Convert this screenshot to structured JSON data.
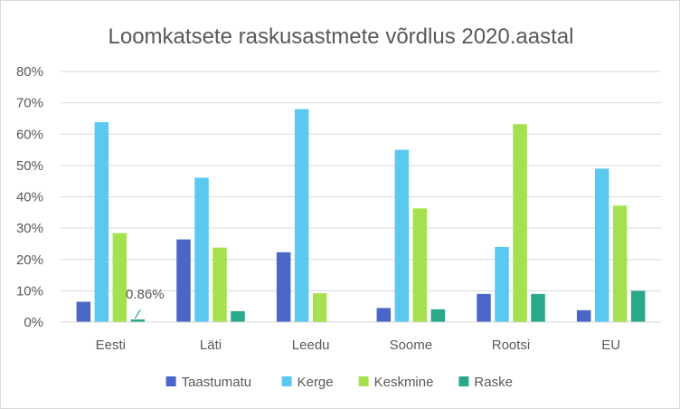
{
  "chart_data": {
    "type": "bar",
    "title": "Loomkatsete raskusastmete võrdlus 2020.aastal",
    "xlabel": "",
    "ylabel": "",
    "categories": [
      "Eesti",
      "Läti",
      "Leedu",
      "Soome",
      "Rootsi",
      "EU"
    ],
    "series": [
      {
        "name": "Taastumatu",
        "color": "#4a66c8",
        "values": [
          6.5,
          26.4,
          22.3,
          4.5,
          9.0,
          3.8
        ]
      },
      {
        "name": "Kerge",
        "color": "#5bc9ef",
        "values": [
          63.8,
          46.1,
          68.0,
          55.0,
          24.0,
          49.0
        ]
      },
      {
        "name": "Keskmine",
        "color": "#a5e04e",
        "values": [
          28.4,
          23.8,
          9.2,
          36.3,
          63.2,
          37.2
        ]
      },
      {
        "name": "Raske",
        "color": "#2aa88a",
        "values": [
          0.86,
          3.5,
          0,
          4.1,
          9.0,
          10.0
        ]
      }
    ],
    "ylim": [
      0,
      80
    ],
    "yticks": [
      "0%",
      "10%",
      "20%",
      "30%",
      "40%",
      "50%",
      "60%",
      "70%",
      "80%"
    ],
    "ytick_values": [
      0,
      10,
      20,
      30,
      40,
      50,
      60,
      70,
      80
    ],
    "grid": true,
    "legend_position": "bottom",
    "annotations": [
      {
        "text": "0.86%",
        "category": "Eesti",
        "series": "Raske"
      }
    ],
    "gridline_color": "#d9d9d9"
  }
}
